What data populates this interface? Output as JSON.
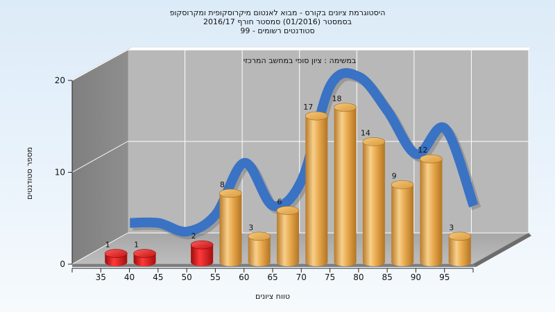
{
  "chart_data": {
    "type": "bar",
    "title_lines": [
      "היסטוגרמת ציונים בקורס - מבוא לאנטום מיקרוסקופית ומקרוסקופ",
      "בסמסטר  (01/2016)  סמסטר חורף  2016/17",
      "סטודנטים רשומים - 99"
    ],
    "note": "במשימה : ציון סופי במחשב המרכזי",
    "xlabel": "טווח ציונים",
    "ylabel": "מספר סטודנטים",
    "ylim": [
      0,
      20
    ],
    "yticks": [
      0,
      10,
      20
    ],
    "categories": [
      "35",
      "40",
      "45",
      "50",
      "55",
      "60",
      "65",
      "70",
      "75",
      "80",
      "85",
      "90",
      "95"
    ],
    "values": [
      1,
      1,
      0,
      2,
      8,
      3,
      6,
      17,
      18,
      14,
      9,
      12,
      3
    ],
    "bar_colors": [
      "#d81818",
      "#d81818",
      "#d81818",
      "#d81818",
      "#e5a243",
      "#e5a243",
      "#e5a243",
      "#e5a243",
      "#e5a243",
      "#e5a243",
      "#e5a243",
      "#e5a243",
      "#e5a243"
    ],
    "curve_color": "#3a72c4",
    "curve_shadow_color": "#7f7f7f",
    "grid": true
  }
}
